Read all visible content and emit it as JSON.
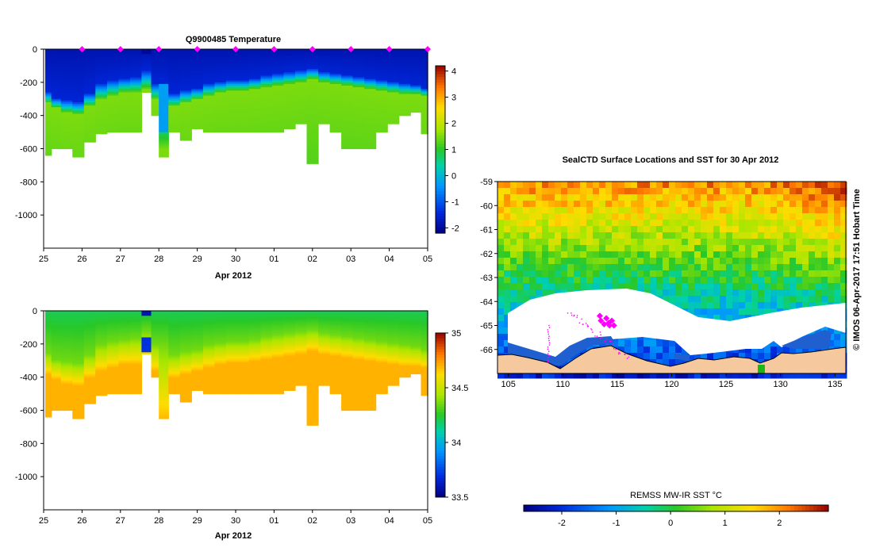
{
  "chart_data": [
    {
      "id": "temperature",
      "type": "heatmap",
      "title": "Q9900485  Temperature",
      "xlabel": "Apr 2012",
      "ylabel": "",
      "x_tick_labels": [
        "25",
        "26",
        "27",
        "28",
        "29",
        "30",
        "01",
        "02",
        "03",
        "04",
        "05"
      ],
      "y_ticks": [
        0,
        -200,
        -400,
        -600,
        -800,
        -1000
      ],
      "ylim": [
        -1200,
        0
      ],
      "colorbar": {
        "min": -2.2,
        "max": 4.2,
        "ticks": [
          4,
          3,
          2,
          1,
          0,
          -1,
          -2
        ]
      },
      "profile_markers_day": [
        26,
        27,
        28,
        29,
        30,
        31,
        32,
        33,
        34,
        35
      ],
      "profiles": [
        {
          "day": 25.1,
          "max_depth": 640,
          "cold_depth": 250,
          "warm_depth": 320
        },
        {
          "day": 25.3,
          "max_depth": 600,
          "cold_depth": 290,
          "warm_depth": 350
        },
        {
          "day": 25.6,
          "max_depth": 600,
          "cold_depth": 300,
          "warm_depth": 380
        },
        {
          "day": 25.9,
          "max_depth": 650,
          "cold_depth": 310,
          "warm_depth": 390
        },
        {
          "day": 26.2,
          "max_depth": 560,
          "cold_depth": 260,
          "warm_depth": 340
        },
        {
          "day": 26.5,
          "max_depth": 510,
          "cold_depth": 200,
          "warm_depth": 300
        },
        {
          "day": 26.8,
          "max_depth": 500,
          "cold_depth": 180,
          "warm_depth": 280
        },
        {
          "day": 27.1,
          "max_depth": 500,
          "cold_depth": 170,
          "warm_depth": 260
        },
        {
          "day": 27.4,
          "max_depth": 500,
          "cold_depth": 160,
          "warm_depth": 260
        },
        {
          "day": 27.7,
          "max_depth": 260,
          "cold_depth": 120,
          "warm_depth": 240
        },
        {
          "day": 27.9,
          "max_depth": 400,
          "cold_depth": 200,
          "warm_depth": 300
        },
        {
          "day": 28.1,
          "max_depth": 650,
          "cold_depth": 200,
          "warm_depth": 600
        },
        {
          "day": 28.4,
          "max_depth": 500,
          "cold_depth": 260,
          "warm_depth": 340
        },
        {
          "day": 28.7,
          "max_depth": 550,
          "cold_depth": 240,
          "warm_depth": 320
        },
        {
          "day": 29.0,
          "max_depth": 480,
          "cold_depth": 230,
          "warm_depth": 300
        },
        {
          "day": 29.3,
          "max_depth": 500,
          "cold_depth": 200,
          "warm_depth": 280
        },
        {
          "day": 29.6,
          "max_depth": 500,
          "cold_depth": 190,
          "warm_depth": 260
        },
        {
          "day": 29.9,
          "max_depth": 500,
          "cold_depth": 180,
          "warm_depth": 250
        },
        {
          "day": 30.2,
          "max_depth": 500,
          "cold_depth": 180,
          "warm_depth": 250
        },
        {
          "day": 30.5,
          "max_depth": 500,
          "cold_depth": 170,
          "warm_depth": 240
        },
        {
          "day": 30.8,
          "max_depth": 500,
          "cold_depth": 150,
          "warm_depth": 230
        },
        {
          "day": 31.1,
          "max_depth": 500,
          "cold_depth": 140,
          "warm_depth": 220
        },
        {
          "day": 31.4,
          "max_depth": 480,
          "cold_depth": 130,
          "warm_depth": 210
        },
        {
          "day": 31.7,
          "max_depth": 450,
          "cold_depth": 120,
          "warm_depth": 200
        },
        {
          "day": 32.0,
          "max_depth": 690,
          "cold_depth": 110,
          "warm_depth": 180
        },
        {
          "day": 32.3,
          "max_depth": 450,
          "cold_depth": 130,
          "warm_depth": 200
        },
        {
          "day": 32.6,
          "max_depth": 500,
          "cold_depth": 140,
          "warm_depth": 210
        },
        {
          "day": 32.9,
          "max_depth": 600,
          "cold_depth": 150,
          "warm_depth": 220
        },
        {
          "day": 33.2,
          "max_depth": 600,
          "cold_depth": 160,
          "warm_depth": 230
        },
        {
          "day": 33.5,
          "max_depth": 600,
          "cold_depth": 170,
          "warm_depth": 240
        },
        {
          "day": 33.8,
          "max_depth": 500,
          "cold_depth": 180,
          "warm_depth": 250
        },
        {
          "day": 34.1,
          "max_depth": 450,
          "cold_depth": 190,
          "warm_depth": 260
        },
        {
          "day": 34.4,
          "max_depth": 400,
          "cold_depth": 200,
          "warm_depth": 270
        },
        {
          "day": 34.7,
          "max_depth": 380,
          "cold_depth": 210,
          "warm_depth": 270
        },
        {
          "day": 34.95,
          "max_depth": 510,
          "cold_depth": 230,
          "warm_depth": 280
        }
      ]
    },
    {
      "id": "salinity",
      "type": "heatmap",
      "title": "",
      "xlabel": "Apr 2012",
      "ylabel": "",
      "x_tick_labels": [
        "25",
        "26",
        "27",
        "28",
        "29",
        "30",
        "01",
        "02",
        "03",
        "04",
        "05"
      ],
      "y_ticks": [
        0,
        -200,
        -400,
        -600,
        -800,
        -1000
      ],
      "ylim": [
        -1200,
        0
      ],
      "colorbar": {
        "min": 33.5,
        "max": 35.0,
        "ticks": [
          35,
          34.5,
          34,
          33.5
        ]
      }
    },
    {
      "id": "sst_map",
      "type": "heatmap",
      "title": "SealCTD Surface Locations and SST for 30 Apr 2012",
      "x_tick_labels": [
        "105",
        "110",
        "115",
        "120",
        "125",
        "130",
        "135"
      ],
      "x_range": [
        104,
        136
      ],
      "y_tick_labels": [
        "-59",
        "-60",
        "-61",
        "-62",
        "-63",
        "-64",
        "-65",
        "-66"
      ],
      "y_range": [
        -67,
        -59
      ],
      "colorbar_label": "REMSS MW-IR SST °C",
      "colorbar": {
        "min": -2.7,
        "max": 2.9,
        "ticks": [
          -2,
          -1,
          0,
          1,
          2
        ]
      },
      "seal_locations": [
        {
          "lon": 113.4,
          "lat": -64.6
        },
        {
          "lon": 113.5,
          "lat": -64.8
        },
        {
          "lon": 114.0,
          "lat": -64.7
        },
        {
          "lon": 114.2,
          "lat": -64.9
        },
        {
          "lon": 114.5,
          "lat": -64.8
        },
        {
          "lon": 114.3,
          "lat": -65.0
        },
        {
          "lon": 113.8,
          "lat": -64.95
        },
        {
          "lon": 114.7,
          "lat": -65.0
        }
      ]
    }
  ],
  "credit": "© IMOS 06-Apr-2017 17:51 Hobart Time",
  "colors": {
    "marker": "#ff00ff",
    "land": "#f5c89e",
    "ice": "#ffffff",
    "coast": "#000000"
  }
}
